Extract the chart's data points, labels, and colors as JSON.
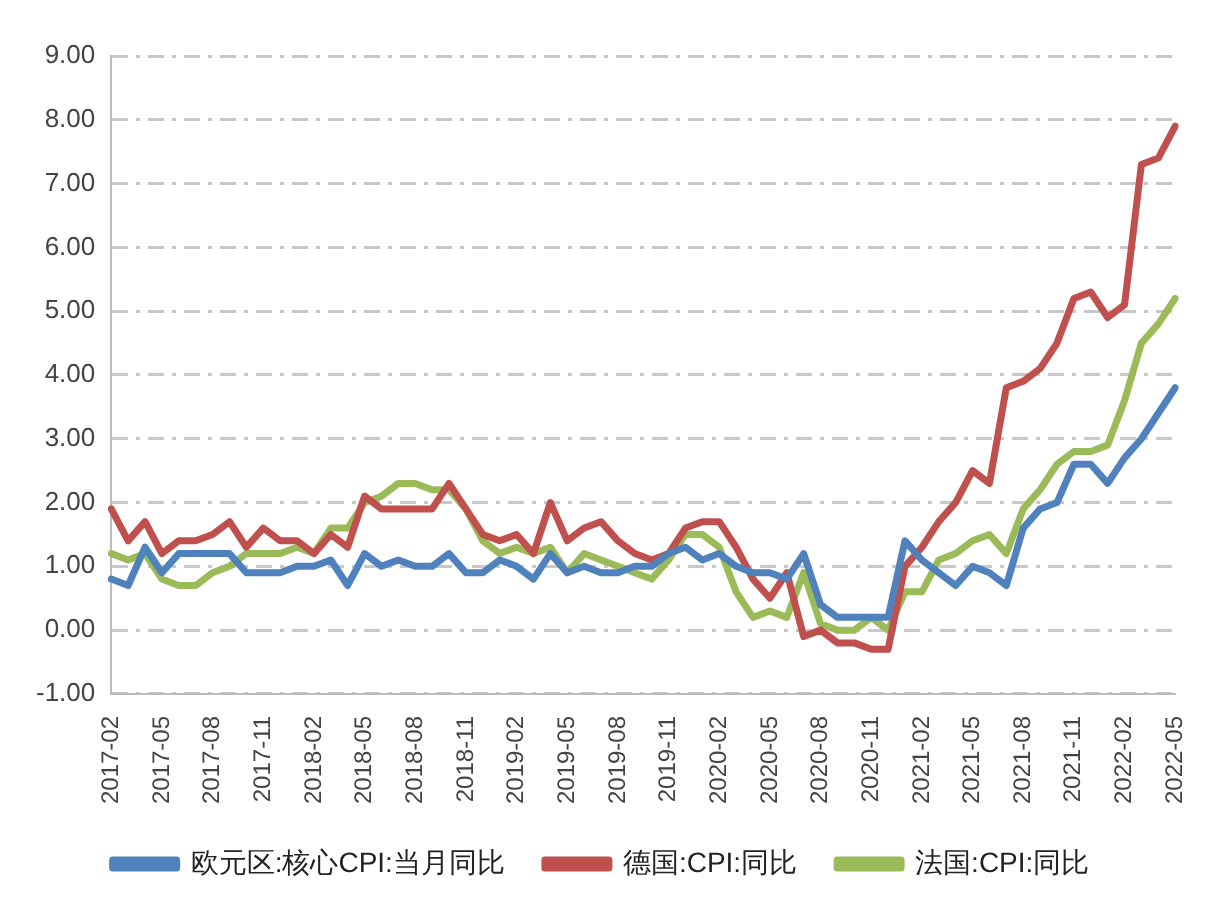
{
  "chart_data": {
    "type": "line",
    "categories": [
      "2017-02",
      null,
      null,
      "2017-05",
      null,
      null,
      "2017-08",
      null,
      null,
      "2017-11",
      null,
      null,
      "2018-02",
      null,
      null,
      "2018-05",
      null,
      null,
      "2018-08",
      null,
      null,
      "2018-11",
      null,
      null,
      "2019-02",
      null,
      null,
      "2019-05",
      null,
      null,
      "2019-08",
      null,
      null,
      "2019-11",
      null,
      null,
      "2020-02",
      null,
      null,
      "2020-05",
      null,
      null,
      "2020-08",
      null,
      null,
      "2020-11",
      null,
      null,
      "2021-02",
      null,
      null,
      "2021-05",
      null,
      null,
      "2021-08",
      null,
      null,
      "2021-11",
      null,
      null,
      "2022-02",
      null,
      null,
      "2022-05"
    ],
    "series": [
      {
        "name": "欧元区:核心CPI:当月同比",
        "color": "#4f81bd",
        "values": [
          0.8,
          0.7,
          1.3,
          0.9,
          1.2,
          1.2,
          1.2,
          1.2,
          0.9,
          0.9,
          0.9,
          1.0,
          1.0,
          1.1,
          0.7,
          1.2,
          1.0,
          1.1,
          1.0,
          1.0,
          1.2,
          0.9,
          0.9,
          1.1,
          1.0,
          0.8,
          1.2,
          0.9,
          1.0,
          0.9,
          0.9,
          1.0,
          1.0,
          1.2,
          1.3,
          1.1,
          1.2,
          1.0,
          0.9,
          0.9,
          0.8,
          1.2,
          0.4,
          0.2,
          0.2,
          0.2,
          0.2,
          1.4,
          1.1,
          0.9,
          0.7,
          1.0,
          0.9,
          0.7,
          1.6,
          1.9,
          2.0,
          2.6,
          2.6,
          2.3,
          2.7,
          3.0,
          3.4,
          3.8
        ]
      },
      {
        "name": "德国:CPI:同比",
        "color": "#c0504d",
        "values": [
          1.9,
          1.4,
          1.7,
          1.2,
          1.4,
          1.4,
          1.5,
          1.7,
          1.3,
          1.6,
          1.4,
          1.4,
          1.2,
          1.5,
          1.3,
          2.1,
          1.9,
          1.9,
          1.9,
          1.9,
          2.3,
          1.9,
          1.5,
          1.4,
          1.5,
          1.2,
          2.0,
          1.4,
          1.6,
          1.7,
          1.4,
          1.2,
          1.1,
          1.2,
          1.6,
          1.7,
          1.7,
          1.3,
          0.8,
          0.5,
          0.9,
          -0.1,
          0.0,
          -0.2,
          -0.2,
          -0.3,
          -0.3,
          1.0,
          1.3,
          1.7,
          2.0,
          2.5,
          2.3,
          3.8,
          3.9,
          4.1,
          4.5,
          5.2,
          5.3,
          4.9,
          5.1,
          7.3,
          7.4,
          7.9
        ]
      },
      {
        "name": "法国:CPI:同比",
        "color": "#9bbb59",
        "values": [
          1.2,
          1.1,
          1.2,
          0.8,
          0.7,
          0.7,
          0.9,
          1.0,
          1.2,
          1.2,
          1.2,
          1.3,
          1.2,
          1.6,
          1.6,
          2.0,
          2.1,
          2.3,
          2.3,
          2.2,
          2.2,
          1.9,
          1.4,
          1.2,
          1.3,
          1.2,
          1.3,
          0.9,
          1.2,
          1.1,
          1.0,
          0.9,
          0.8,
          1.1,
          1.5,
          1.5,
          1.3,
          0.6,
          0.2,
          0.3,
          0.2,
          0.9,
          0.1,
          0.0,
          0.0,
          0.2,
          0.0,
          0.6,
          0.6,
          1.1,
          1.2,
          1.4,
          1.5,
          1.2,
          1.9,
          2.2,
          2.6,
          2.8,
          2.8,
          2.9,
          3.6,
          4.5,
          4.8,
          5.2
        ]
      }
    ],
    "ylim": [
      -1,
      9
    ],
    "yticks": [
      {
        "value": -1,
        "label": "-1.00"
      },
      {
        "value": 0,
        "label": "0.00"
      },
      {
        "value": 1,
        "label": "1.00"
      },
      {
        "value": 2,
        "label": "2.00"
      },
      {
        "value": 3,
        "label": "3.00"
      },
      {
        "value": 4,
        "label": "4.00"
      },
      {
        "value": 5,
        "label": "5.00"
      },
      {
        "value": 6,
        "label": "6.00"
      },
      {
        "value": 7,
        "label": "7.00"
      },
      {
        "value": 8,
        "label": "8.00"
      },
      {
        "value": 9,
        "label": "9.00"
      }
    ],
    "grid": "y",
    "legend": "bottom",
    "marker": "none",
    "line_style": "solid"
  }
}
